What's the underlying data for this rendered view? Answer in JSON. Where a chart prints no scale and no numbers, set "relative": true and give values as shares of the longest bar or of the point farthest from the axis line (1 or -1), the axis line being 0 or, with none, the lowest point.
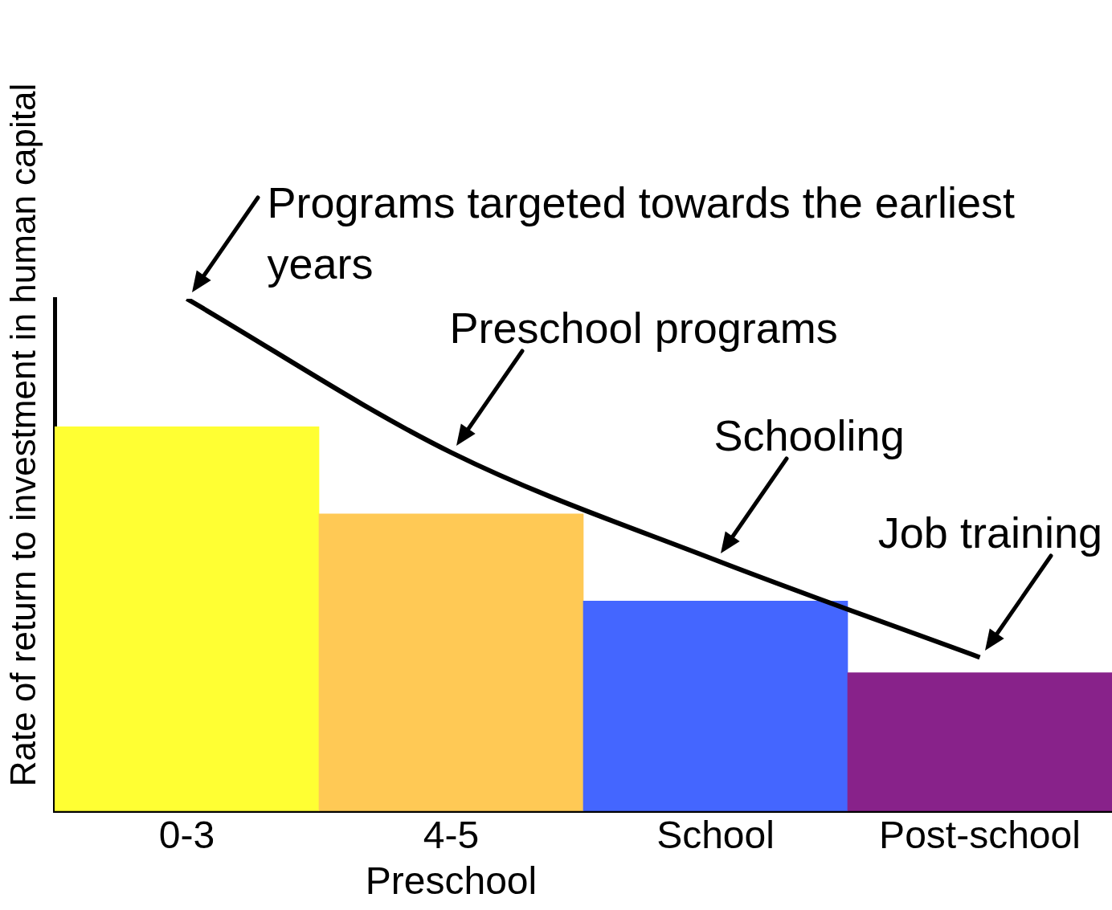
{
  "chart_data": {
    "type": "bar",
    "relative": true,
    "ylabel": "Rate of return to investment in human capital",
    "categories": [
      "0-3",
      "4-5 Preschool",
      "School",
      "Post-school"
    ],
    "values": [
      0.75,
      0.58,
      0.41,
      0.27
    ],
    "colors": [
      "#ffff33",
      "#ffc955",
      "#4466ff",
      "#88228a"
    ],
    "series": [
      {
        "type": "line",
        "color": "#000000",
        "values": [
          1.0,
          0.7,
          0.49,
          0.3
        ]
      }
    ],
    "annotations": [
      {
        "text": "Programs targeted towards the earliest years",
        "x": "0-3",
        "y": 1.0
      },
      {
        "text": "Preschool programs",
        "x": "4-5 Preschool",
        "y": 0.7
      },
      {
        "text": "Schooling",
        "x": "School",
        "y": 0.49
      },
      {
        "text": "Job training",
        "x": "Post-school",
        "y": 0.3
      }
    ],
    "legend": false,
    "grid": false
  }
}
